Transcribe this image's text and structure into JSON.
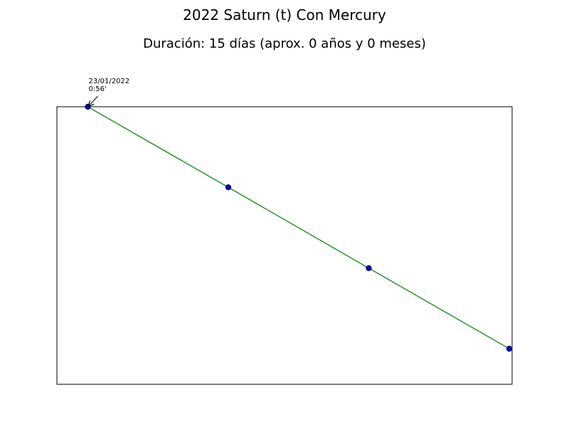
{
  "chart_data": {
    "type": "line",
    "title": "2022 Saturn (t) Con Mercury",
    "subtitle": "Duración: 15 días (aprox. 0 años y 0 meses)",
    "xlabel": "",
    "ylabel": "",
    "grid": false,
    "x_ticks_visible": false,
    "y_ticks_visible": false,
    "series": [
      {
        "line_color": "#008000",
        "marker_color": "#0000aa",
        "points": [
          {
            "x": 0.0,
            "y": 1.0
          },
          {
            "x": 5.0,
            "y": 0.667
          },
          {
            "x": 10.0,
            "y": 0.333
          },
          {
            "x": 15.0,
            "y": 0.0
          }
        ]
      }
    ],
    "xlim": [
      -1.1,
      15.1
    ],
    "ylim": [
      -0.147,
      1.0
    ],
    "annotations": [
      {
        "point_index": 0,
        "line1": "23/01/2022",
        "line2": "0:56'"
      }
    ]
  }
}
